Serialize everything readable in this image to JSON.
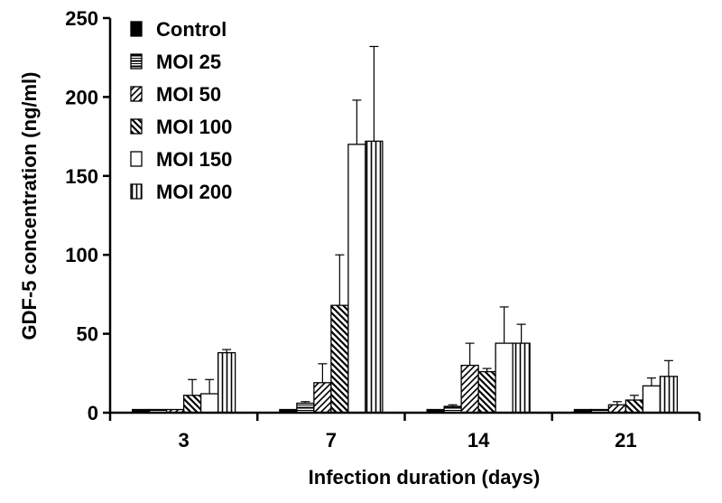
{
  "chart_data": {
    "type": "bar",
    "title": "",
    "xlabel": "Infection duration (days)",
    "ylabel": "GDF-5 concentration (ng/ml)",
    "ylim": [
      0,
      250
    ],
    "yticks": [
      0,
      50,
      100,
      150,
      200,
      250
    ],
    "categories": [
      "3",
      "7",
      "14",
      "21"
    ],
    "grid": false,
    "legend_position": "top-left",
    "series": [
      {
        "name": "Control",
        "pattern": "solid",
        "values": [
          2,
          2,
          2,
          2
        ],
        "errors": [
          0,
          0,
          0,
          0
        ]
      },
      {
        "name": "MOI 25",
        "pattern": "horizontal",
        "values": [
          2,
          6,
          4,
          2
        ],
        "errors": [
          0,
          1,
          1,
          0
        ]
      },
      {
        "name": "MOI 50",
        "pattern": "diagonal-up",
        "values": [
          2,
          19,
          30,
          5
        ],
        "errors": [
          0,
          12,
          14,
          2
        ]
      },
      {
        "name": "MOI 100",
        "pattern": "diagonal-down",
        "values": [
          11,
          68,
          26,
          8
        ],
        "errors": [
          10,
          32,
          2,
          3
        ]
      },
      {
        "name": "MOI 150",
        "pattern": "empty",
        "values": [
          12,
          170,
          44,
          17
        ],
        "errors": [
          9,
          28,
          23,
          5
        ]
      },
      {
        "name": "MOI 200",
        "pattern": "vertical",
        "values": [
          38,
          172,
          44,
          23
        ],
        "errors": [
          2,
          60,
          12,
          10
        ]
      }
    ]
  }
}
